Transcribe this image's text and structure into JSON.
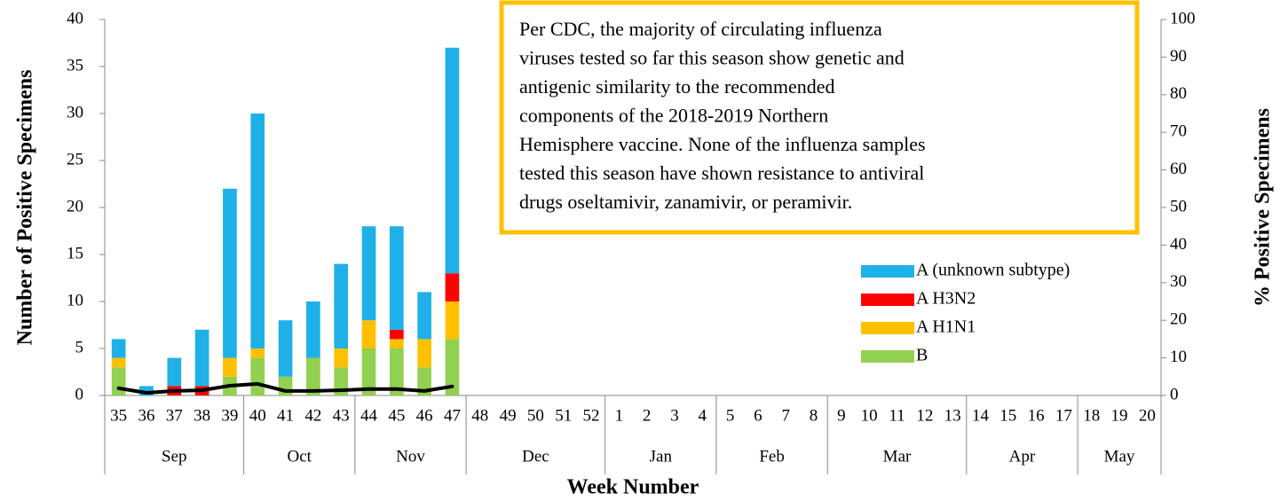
{
  "chart_data": {
    "type": "bar",
    "stacked": true,
    "ylabel": "Number of Positive Specimens",
    "y2label": "% Positive Specimens",
    "xlabel": "Week Number",
    "categories": [
      "35",
      "36",
      "37",
      "38",
      "39",
      "40",
      "41",
      "42",
      "43",
      "44",
      "45",
      "46",
      "47",
      "48",
      "49",
      "50",
      "51",
      "52",
      "1",
      "2",
      "3",
      "4",
      "5",
      "6",
      "7",
      "8",
      "9",
      "10",
      "11",
      "12",
      "13",
      "14",
      "15",
      "16",
      "17",
      "18",
      "19",
      "20"
    ],
    "months": [
      "Sep",
      "Sep",
      "Sep",
      "Sep",
      "Sep",
      "Oct",
      "Oct",
      "Oct",
      "Oct",
      "Nov",
      "Nov",
      "Nov",
      "Nov",
      "Dec",
      "Dec",
      "Dec",
      "Dec",
      "Dec",
      "Jan",
      "Jan",
      "Jan",
      "Jan",
      "Feb",
      "Feb",
      "Feb",
      "Feb",
      "Mar",
      "Mar",
      "Mar",
      "Mar",
      "Mar",
      "Apr",
      "Apr",
      "Apr",
      "Apr",
      "May",
      "May",
      "May"
    ],
    "series": [
      {
        "name": "B",
        "color": "#92D050",
        "values": [
          3,
          0,
          0,
          0,
          2,
          4,
          2,
          4,
          3,
          5,
          5,
          3,
          6,
          null,
          null,
          null,
          null,
          null,
          null,
          null,
          null,
          null,
          null,
          null,
          null,
          null,
          null,
          null,
          null,
          null,
          null,
          null,
          null,
          null,
          null,
          null,
          null,
          null
        ]
      },
      {
        "name": "A H1N1",
        "color": "#FFC000",
        "values": [
          1,
          0,
          0,
          0,
          2,
          1,
          0,
          0,
          2,
          3,
          1,
          3,
          4,
          null,
          null,
          null,
          null,
          null,
          null,
          null,
          null,
          null,
          null,
          null,
          null,
          null,
          null,
          null,
          null,
          null,
          null,
          null,
          null,
          null,
          null,
          null,
          null,
          null
        ]
      },
      {
        "name": "A H3N2",
        "color": "#FF0000",
        "values": [
          0,
          0,
          1,
          1,
          0,
          0,
          0,
          0,
          0,
          0,
          1,
          0,
          3,
          null,
          null,
          null,
          null,
          null,
          null,
          null,
          null,
          null,
          null,
          null,
          null,
          null,
          null,
          null,
          null,
          null,
          null,
          null,
          null,
          null,
          null,
          null,
          null,
          null
        ]
      },
      {
        "name": "A (unknown subtype)",
        "color": "#1FB0E8",
        "values": [
          2,
          1,
          3,
          6,
          18,
          25,
          6,
          6,
          9,
          10,
          11,
          5,
          24,
          null,
          null,
          null,
          null,
          null,
          null,
          null,
          null,
          null,
          null,
          null,
          null,
          null,
          null,
          null,
          null,
          null,
          null,
          null,
          null,
          null,
          null,
          null,
          null,
          null
        ]
      },
      {
        "type": "line",
        "axis": "y2",
        "color": "#000000",
        "values": [
          1.9,
          0.7,
          1.2,
          1.4,
          2.6,
          3.1,
          1.2,
          1.2,
          1.4,
          1.7,
          1.7,
          1.2,
          2.4,
          null,
          null,
          null,
          null,
          null,
          null,
          null,
          null,
          null,
          null,
          null,
          null,
          null,
          null,
          null,
          null,
          null,
          null,
          null,
          null,
          null,
          null,
          null,
          null,
          null
        ]
      }
    ],
    "ylim": [
      0,
      40
    ],
    "yticks": [
      0,
      5,
      10,
      15,
      20,
      25,
      30,
      35,
      40
    ],
    "y2lim": [
      0,
      100
    ],
    "y2ticks": [
      0,
      10,
      20,
      30,
      40,
      50,
      60,
      70,
      80,
      90,
      100
    ],
    "legend": "right",
    "annotation": [
      "Per CDC, the majority of circulating influenza",
      "viruses tested so far this season show genetic and",
      "antigenic similarity to the recommended",
      "components of the 2018-2019 Northern",
      "Hemisphere vaccine. None of the influenza samples",
      "tested this season have shown resistance to antiviral",
      "drugs oseltamivir, zanamivir, or peramivir."
    ]
  }
}
